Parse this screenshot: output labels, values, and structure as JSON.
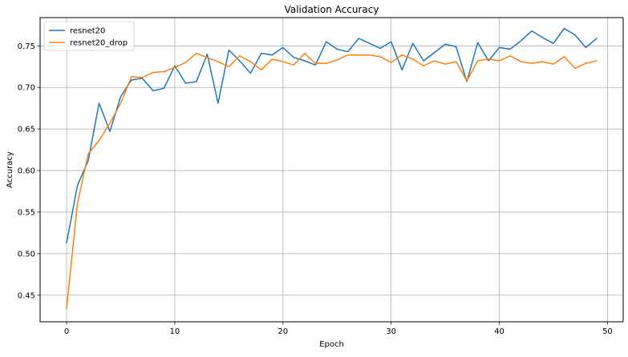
{
  "chart_data": {
    "type": "line",
    "title": "Validation Accuracy",
    "xlabel": "Epoch",
    "ylabel": "Accuracy",
    "xlim": [
      -2.45,
      51.45
    ],
    "ylim": [
      0.418,
      0.784
    ],
    "xticks": [
      0,
      10,
      20,
      30,
      40,
      50
    ],
    "yticks": [
      0.45,
      0.5,
      0.55,
      0.6,
      0.65,
      0.7,
      0.75
    ],
    "grid": true,
    "legend_position": "top-left",
    "x": [
      0,
      1,
      2,
      3,
      4,
      5,
      6,
      7,
      8,
      9,
      10,
      11,
      12,
      13,
      14,
      15,
      16,
      17,
      18,
      19,
      20,
      21,
      22,
      23,
      24,
      25,
      26,
      27,
      28,
      29,
      30,
      31,
      32,
      33,
      34,
      35,
      36,
      37,
      38,
      39,
      40,
      41,
      42,
      43,
      44,
      45,
      46,
      47,
      48,
      49
    ],
    "series": [
      {
        "name": "resnet20",
        "color": "#1f77b4",
        "values": [
          0.513,
          0.582,
          0.612,
          0.681,
          0.647,
          0.689,
          0.709,
          0.711,
          0.696,
          0.699,
          0.726,
          0.705,
          0.707,
          0.74,
          0.681,
          0.745,
          0.732,
          0.717,
          0.741,
          0.739,
          0.748,
          0.736,
          0.732,
          0.727,
          0.755,
          0.746,
          0.743,
          0.759,
          0.753,
          0.747,
          0.755,
          0.721,
          0.753,
          0.732,
          0.742,
          0.752,
          0.749,
          0.707,
          0.754,
          0.732,
          0.748,
          0.746,
          0.756,
          0.768,
          0.76,
          0.753,
          0.771,
          0.763,
          0.748,
          0.759
        ]
      },
      {
        "name": "resnet20_drop",
        "color": "#ff7f0e",
        "values": [
          0.434,
          0.56,
          0.62,
          0.636,
          0.657,
          0.681,
          0.713,
          0.712,
          0.718,
          0.719,
          0.724,
          0.73,
          0.741,
          0.736,
          0.731,
          0.725,
          0.738,
          0.731,
          0.721,
          0.734,
          0.731,
          0.727,
          0.741,
          0.729,
          0.729,
          0.733,
          0.739,
          0.739,
          0.739,
          0.737,
          0.73,
          0.739,
          0.734,
          0.726,
          0.732,
          0.728,
          0.731,
          0.708,
          0.732,
          0.734,
          0.732,
          0.738,
          0.731,
          0.729,
          0.731,
          0.728,
          0.737,
          0.723,
          0.729,
          0.732
        ]
      }
    ]
  }
}
